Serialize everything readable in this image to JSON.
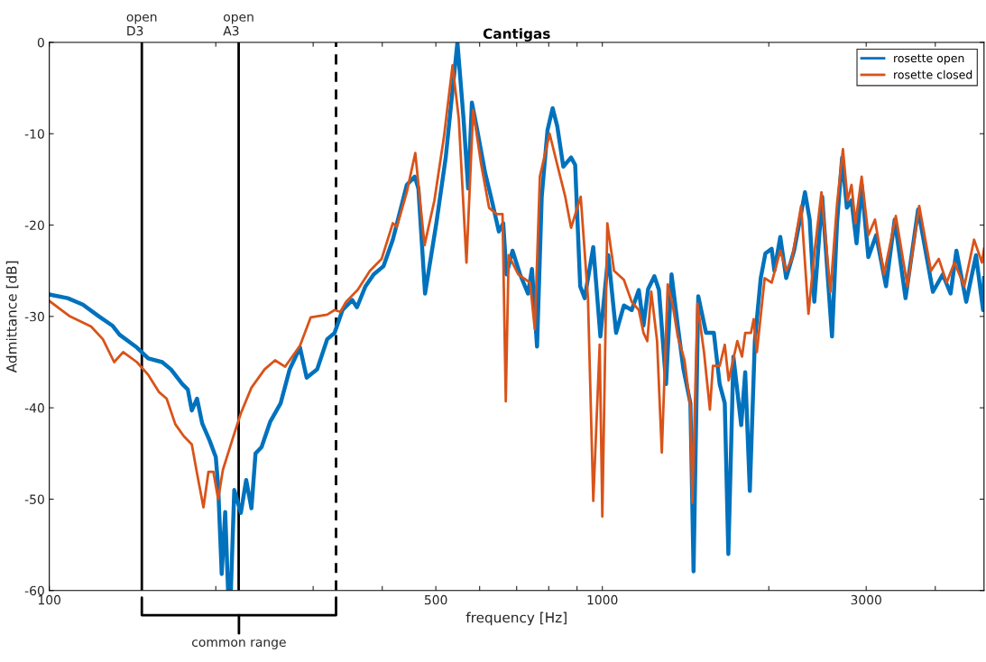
{
  "chart_data": {
    "type": "line",
    "title": "Cantigas",
    "xlabel": "frequency [Hz]",
    "ylabel": "Admittance [dB]",
    "log": "x",
    "xlim": [
      100,
      4900
    ],
    "ylim": [
      -60,
      0
    ],
    "xticks": [
      100,
      {
        "value": 200,
        "label": null
      },
      {
        "value": 300,
        "label": null
      },
      {
        "value": 400,
        "label": null
      },
      500,
      {
        "value": 600,
        "label": null
      },
      {
        "value": 700,
        "label": null
      },
      {
        "value": 800,
        "label": null
      },
      {
        "value": 900,
        "label": null
      },
      1000,
      {
        "value": 2000,
        "label": null
      },
      3000,
      {
        "value": 4000,
        "label": null
      }
    ],
    "yticks": [
      -60,
      -50,
      -40,
      -30,
      -20,
      -10,
      0
    ],
    "legend": "top right",
    "ref_lines": [
      {
        "axis": "x",
        "value": 147,
        "label": "open\nD3",
        "color": "#000000",
        "line_style": "solid"
      },
      {
        "axis": "x",
        "value": 220,
        "label": "open\nA3",
        "color": "#000000",
        "line_style": "solid"
      },
      {
        "axis": "x",
        "value": 330,
        "color": "#000000",
        "line_style": "dashed"
      }
    ],
    "annotations": [
      "common range"
    ],
    "series": [
      {
        "name": "rosette open",
        "color": "#0072bd",
        "x": [
          100,
          108,
          115,
          123,
          130,
          134,
          144,
          151,
          160,
          166,
          174,
          178,
          181,
          185,
          189,
          195,
          200,
          202,
          205,
          208,
          210.5,
          213,
          216,
          222,
          227,
          232,
          236,
          242,
          251,
          262,
          272,
          284,
          292,
          305,
          318,
          328,
          339,
          353,
          360,
          373,
          386,
          402,
          418,
          443,
          458,
          465,
          478,
          501,
          521,
          534,
          547,
          561,
          572,
          581,
          594,
          614,
          629,
          650,
          662,
          671,
          688,
          710,
          734,
          746,
          762,
          777,
          796,
          813,
          829,
          850,
          878,
          893,
          912,
          929,
          963,
          992,
          1025,
          1059,
          1094,
          1130,
          1164,
          1187,
          1210,
          1242,
          1266,
          1304,
          1334,
          1369,
          1401,
          1443,
          1462,
          1491,
          1540,
          1591,
          1630,
          1665,
          1690,
          1726,
          1783,
          1813,
          1848,
          1887,
          1934,
          1972,
          2024,
          2047,
          2098,
          2150,
          2222,
          2277,
          2325,
          2371,
          2417,
          2498,
          2552,
          2602,
          2657,
          2714,
          2768,
          2822,
          2882,
          2944,
          3027,
          3127,
          3258,
          3378,
          3534,
          3724,
          3961,
          4126,
          4263,
          4368,
          4550,
          4739,
          4880,
          4900
        ],
        "values": [
          -27.6,
          -28,
          -28.7,
          -30,
          -31,
          -32,
          -33.4,
          -34.6,
          -35,
          -35.8,
          -37.4,
          -38,
          -40.3,
          -39,
          -41.7,
          -43.6,
          -45.4,
          -48.6,
          -58.2,
          -51.4,
          -60,
          -60,
          -49,
          -51.5,
          -47.9,
          -51,
          -45,
          -44.3,
          -41.5,
          -39.5,
          -35.8,
          -33.4,
          -36.7,
          -35.8,
          -32.5,
          -31.8,
          -29.3,
          -28.2,
          -29,
          -26.7,
          -25.4,
          -24.5,
          -21.6,
          -15.6,
          -14.7,
          -16,
          -27.5,
          -19.8,
          -12.6,
          -6.2,
          0,
          -8.3,
          -16,
          -6.6,
          -9.6,
          -14.3,
          -16.9,
          -20.7,
          -19.8,
          -25.4,
          -22.8,
          -25.4,
          -27.5,
          -24.8,
          -33.3,
          -16.9,
          -9.6,
          -7.2,
          -9.2,
          -13.6,
          -12.6,
          -13.4,
          -26.7,
          -28,
          -22.4,
          -32.2,
          -23.3,
          -31.8,
          -28.8,
          -29.3,
          -27.1,
          -31,
          -27,
          -25.6,
          -27.1,
          -37.4,
          -25.4,
          -31,
          -35.7,
          -39.5,
          -57.9,
          -27.8,
          -31.8,
          -31.8,
          -37.4,
          -39.5,
          -56,
          -34.4,
          -41.9,
          -36.1,
          -49.1,
          -32.7,
          -25.8,
          -23.1,
          -22.6,
          -25,
          -21.3,
          -25.8,
          -22.8,
          -19.4,
          -16.4,
          -19.4,
          -28.4,
          -16.9,
          -25,
          -32.2,
          -19.8,
          -12.6,
          -18.1,
          -17.3,
          -22,
          -15.6,
          -23.5,
          -21.1,
          -26.7,
          -19.4,
          -28,
          -18.3,
          -27.3,
          -25.4,
          -27.5,
          -22.8,
          -28.4,
          -23.3,
          -29.3,
          -25.8
        ]
      },
      {
        "name": "rosette closed",
        "color": "#d95319",
        "x": [
          100,
          109,
          119,
          125,
          131,
          136,
          144,
          151,
          158,
          163,
          169,
          175,
          181,
          185,
          190,
          194,
          198,
          202,
          206,
          214,
          222,
          232,
          245,
          256,
          267,
          284,
          297,
          318,
          328,
          336,
          344,
          361,
          380,
          399,
          418,
          425,
          443,
          459,
          477,
          497,
          517,
          536,
          550,
          568,
          584,
          604,
          624,
          644,
          660,
          669,
          677,
          705,
          740,
          755,
          771,
          803,
          829,
          857,
          878,
          914,
          942,
          963,
          989,
          1000,
          1021,
          1050,
          1094,
          1130,
          1164,
          1187,
          1206,
          1226,
          1256,
          1281,
          1313,
          1341,
          1369,
          1408,
          1443,
          1455,
          1486,
          1527,
          1565,
          1585,
          1630,
          1665,
          1692,
          1754,
          1789,
          1813,
          1857,
          1878,
          1903,
          1966,
          2024,
          2098,
          2150,
          2203,
          2288,
          2359,
          2421,
          2490,
          2585,
          2657,
          2723,
          2777,
          2822,
          2869,
          2944,
          3027,
          3112,
          3231,
          3394,
          3563,
          3741,
          3929,
          4059,
          4194,
          4333,
          4513,
          4701,
          4857,
          4900
        ],
        "values": [
          -28.3,
          -30,
          -31.1,
          -32.5,
          -35,
          -33.9,
          -35,
          -36.4,
          -38.3,
          -39,
          -41.8,
          -43.1,
          -44,
          -47.2,
          -50.9,
          -47,
          -47,
          -50,
          -46.8,
          -43.6,
          -40.6,
          -37.8,
          -35.8,
          -34.8,
          -35.5,
          -33.2,
          -30.1,
          -29.8,
          -29.3,
          -29.5,
          -28.4,
          -27.1,
          -25,
          -23.7,
          -19.8,
          -20.2,
          -16.4,
          -12.1,
          -22.2,
          -17.3,
          -10.4,
          -2.5,
          -8.3,
          -24.1,
          -7.4,
          -13.4,
          -18.1,
          -18.8,
          -18.8,
          -39.3,
          -23.3,
          -25.4,
          -26.3,
          -31.4,
          -14.7,
          -10,
          -13.4,
          -16.9,
          -20.3,
          -16.9,
          -28,
          -50.2,
          -33.1,
          -51.9,
          -19.8,
          -25,
          -26,
          -28.4,
          -29.3,
          -31.8,
          -32.7,
          -27.3,
          -32.7,
          -44.9,
          -26.5,
          -28.8,
          -32.2,
          -34.8,
          -39.9,
          -50.4,
          -28.6,
          -33.9,
          -40.2,
          -35.4,
          -35.4,
          -33.1,
          -37,
          -32.7,
          -34.4,
          -31.8,
          -31.8,
          -30.3,
          -33.9,
          -25.8,
          -26.3,
          -22.8,
          -25,
          -23.7,
          -17.9,
          -29.7,
          -22.8,
          -16.4,
          -27.3,
          -17.7,
          -11.7,
          -17.3,
          -15.6,
          -19.8,
          -14.7,
          -21.1,
          -19.4,
          -25.4,
          -19,
          -26.7,
          -17.9,
          -25,
          -23.7,
          -26.3,
          -24.1,
          -26.7,
          -21.6,
          -24.1,
          -22.6
        ]
      }
    ]
  }
}
